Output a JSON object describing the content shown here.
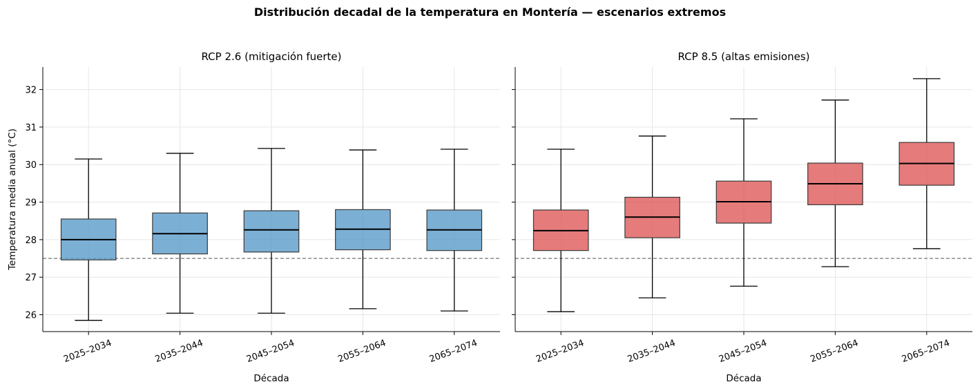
{
  "suptitle": "Distribución decadal de la temperatura en Montería — escenarios extremos",
  "ylabel": "Temperatura media anual (°C)",
  "chart_data": [
    {
      "type": "box",
      "title": "RCP 2.6 (mitigación fuerte)",
      "xlabel": "Década",
      "ylabel": "Temperatura media anual (°C)",
      "ylim": [
        25.55,
        32.6
      ],
      "yticks": [
        26,
        27,
        28,
        29,
        30,
        31,
        32
      ],
      "grid": true,
      "reference_line": 27.5,
      "color": "#5b9bc9",
      "categories": [
        "2025–2034",
        "2035–2044",
        "2045–2054",
        "2055–2064",
        "2065–2074"
      ],
      "boxes": [
        {
          "whislo": 25.85,
          "q1": 27.46,
          "med": 28.0,
          "q3": 28.55,
          "whishi": 30.15
        },
        {
          "whislo": 26.04,
          "q1": 27.62,
          "med": 28.16,
          "q3": 28.71,
          "whishi": 30.3
        },
        {
          "whislo": 26.04,
          "q1": 27.67,
          "med": 28.26,
          "q3": 28.77,
          "whishi": 30.43
        },
        {
          "whislo": 26.16,
          "q1": 27.73,
          "med": 28.28,
          "q3": 28.8,
          "whishi": 30.39
        },
        {
          "whislo": 26.1,
          "q1": 27.71,
          "med": 28.26,
          "q3": 28.79,
          "whishi": 30.41
        }
      ]
    },
    {
      "type": "box",
      "title": "RCP 8.5 (altas emisiones)",
      "xlabel": "Década",
      "ylim": [
        25.55,
        32.6
      ],
      "yticks": [
        26,
        27,
        28,
        29,
        30,
        31,
        32
      ],
      "grid": true,
      "reference_line": 27.5,
      "color": "#df5a5a",
      "categories": [
        "2025–2034",
        "2035–2044",
        "2045–2054",
        "2055–2064",
        "2065–2074"
      ],
      "boxes": [
        {
          "whislo": 26.08,
          "q1": 27.71,
          "med": 28.24,
          "q3": 28.79,
          "whishi": 30.41
        },
        {
          "whislo": 26.45,
          "q1": 28.05,
          "med": 28.6,
          "q3": 29.13,
          "whishi": 30.76
        },
        {
          "whislo": 26.76,
          "q1": 28.44,
          "med": 29.01,
          "q3": 29.56,
          "whishi": 31.22
        },
        {
          "whislo": 27.28,
          "q1": 28.93,
          "med": 29.49,
          "q3": 30.04,
          "whishi": 31.72
        },
        {
          "whislo": 27.76,
          "q1": 29.45,
          "med": 30.03,
          "q3": 30.59,
          "whishi": 32.29
        }
      ]
    }
  ]
}
